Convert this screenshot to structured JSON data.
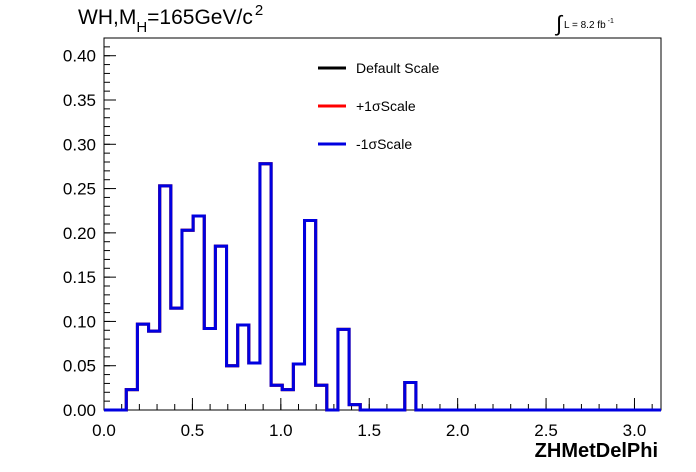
{
  "chart_data": {
    "type": "histogram",
    "title": {
      "prefix": "WH,M",
      "subscript": "H",
      "suffix": "=165GeV/c",
      "superscript": "2"
    },
    "luminosity": {
      "integral_symbol": "∫",
      "text": "L = 8.2 fb",
      "superscript": "-1"
    },
    "xlabel": "ZHMetDelPhi",
    "ylabel": "",
    "xlim": [
      0,
      3.15
    ],
    "ylim": [
      0,
      0.42
    ],
    "x_ticks": [
      "0.0",
      "0.5",
      "1.0",
      "1.5",
      "2.0",
      "2.5",
      "3.0"
    ],
    "x_tick_values": [
      0,
      0.5,
      1.0,
      1.5,
      2.0,
      2.5,
      3.0
    ],
    "y_ticks": [
      "0.00",
      "0.05",
      "0.10",
      "0.15",
      "0.20",
      "0.25",
      "0.30",
      "0.35",
      "0.40"
    ],
    "y_tick_values": [
      0,
      0.05,
      0.1,
      0.15,
      0.2,
      0.25,
      0.3,
      0.35,
      0.4
    ],
    "bin_width": 0.063,
    "bin_start": 0.0,
    "legend_position": "top-center",
    "series": [
      {
        "name": "Default Scale",
        "color": "#000000",
        "values": [
          0,
          0,
          0.023,
          0.097,
          0.089,
          0.253,
          0.115,
          0.203,
          0.219,
          0.092,
          0.185,
          0.05,
          0.096,
          0.053,
          0.278,
          0.028,
          0.023,
          0.052,
          0.214,
          0.028,
          0,
          0.091,
          0.006,
          0,
          0,
          0,
          0,
          0.031,
          0,
          0,
          0,
          0,
          0,
          0,
          0,
          0,
          0,
          0,
          0,
          0,
          0,
          0,
          0,
          0,
          0,
          0,
          0,
          0,
          0,
          0
        ]
      },
      {
        "name": "+1σScale",
        "color": "#ff0000",
        "values": [
          0,
          0,
          0.023,
          0.097,
          0.089,
          0.253,
          0.115,
          0.203,
          0.219,
          0.092,
          0.185,
          0.05,
          0.096,
          0.053,
          0.278,
          0.028,
          0.023,
          0.052,
          0.214,
          0.028,
          0,
          0.091,
          0.006,
          0,
          0,
          0,
          0,
          0.031,
          0,
          0,
          0,
          0,
          0,
          0,
          0,
          0,
          0,
          0,
          0,
          0,
          0,
          0,
          0,
          0,
          0,
          0,
          0,
          0,
          0,
          0
        ]
      },
      {
        "name": "-1σScale",
        "color": "#0000e0",
        "values": [
          0,
          0,
          0.023,
          0.097,
          0.089,
          0.253,
          0.115,
          0.203,
          0.219,
          0.092,
          0.185,
          0.05,
          0.096,
          0.053,
          0.278,
          0.028,
          0.023,
          0.052,
          0.214,
          0.028,
          0,
          0.091,
          0.006,
          0,
          0,
          0,
          0,
          0.031,
          0,
          0,
          0,
          0,
          0,
          0,
          0,
          0,
          0,
          0,
          0,
          0,
          0,
          0,
          0,
          0,
          0,
          0,
          0,
          0,
          0,
          0
        ]
      }
    ]
  }
}
